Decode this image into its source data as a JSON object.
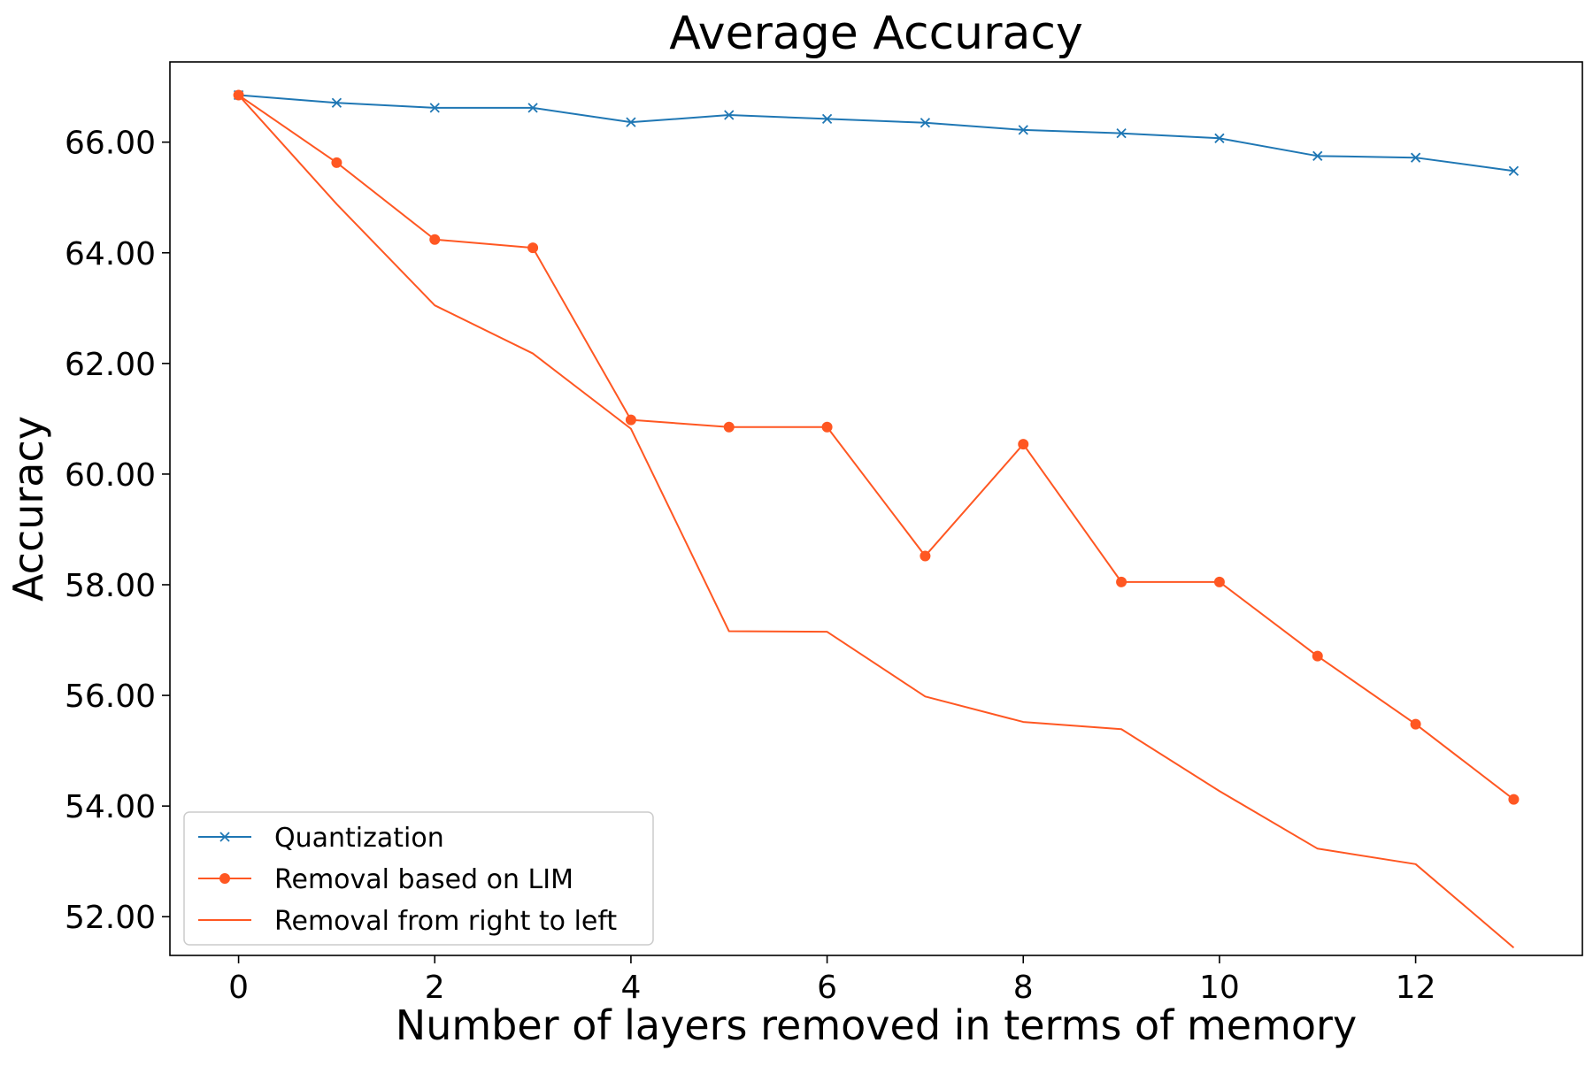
{
  "chart_data": {
    "type": "line",
    "title": "Average Accuracy",
    "xlabel": "Number of layers removed in terms of memory",
    "ylabel": "Accuracy",
    "xlim": [
      -0.7,
      13.7
    ],
    "ylim": [
      51.3,
      67.45
    ],
    "xticks": [
      0,
      2,
      4,
      6,
      8,
      10,
      12
    ],
    "xtick_labels": [
      "0",
      "2",
      "4",
      "6",
      "8",
      "10",
      "12"
    ],
    "yticks": [
      52,
      54,
      56,
      58,
      60,
      62,
      64,
      66
    ],
    "ytick_labels": [
      "52.00",
      "54.00",
      "56.00",
      "58.00",
      "60.00",
      "62.00",
      "64.00",
      "66.00"
    ],
    "grid": false,
    "legend_position": "lower-left",
    "x": [
      0,
      1,
      2,
      3,
      4,
      5,
      6,
      7,
      8,
      9,
      10,
      11,
      12,
      13
    ],
    "series": [
      {
        "name": "Quantization",
        "color": "#1f77b4",
        "marker": "x",
        "values": [
          66.85,
          66.71,
          66.62,
          66.62,
          66.36,
          66.49,
          66.42,
          66.35,
          66.22,
          66.16,
          66.07,
          65.75,
          65.72,
          65.48
        ]
      },
      {
        "name": "Removal based on LIM",
        "color": "#ff5722",
        "marker": "circle",
        "values": [
          66.85,
          65.63,
          64.24,
          64.09,
          60.98,
          60.85,
          60.85,
          58.52,
          60.54,
          58.05,
          58.05,
          56.71,
          55.48,
          54.12
        ]
      },
      {
        "name": "Removal from right to left",
        "color": "#ff5722",
        "marker": "none",
        "values": [
          66.85,
          64.88,
          63.05,
          62.18,
          60.82,
          57.16,
          57.15,
          55.98,
          55.52,
          55.39,
          54.27,
          53.23,
          52.95,
          51.44
        ]
      }
    ]
  }
}
